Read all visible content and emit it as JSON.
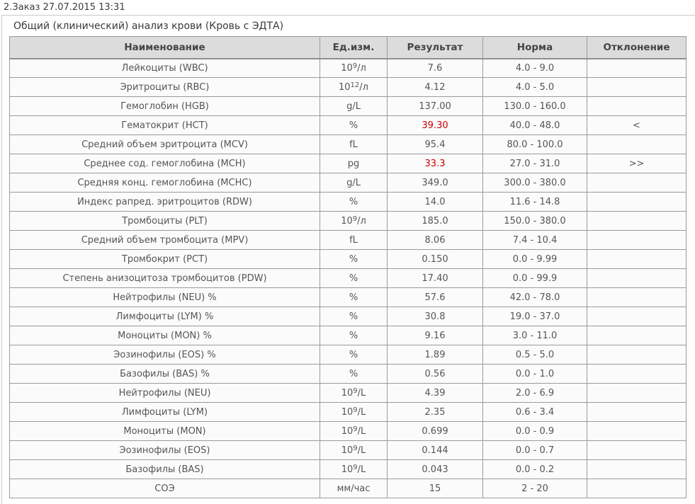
{
  "order": {
    "title": "2.Заказ 27.07.2015 13:31"
  },
  "report": {
    "caption": "Общий (клинический) анализ крови (Кровь с ЭДТА)"
  },
  "table": {
    "columns": [
      "Наименование",
      "Ед.изм.",
      "Результат",
      "Норма",
      "Отклонение"
    ],
    "colors": {
      "flagged_result": "#cc0000",
      "header_bg": "#dcdcdc",
      "row_bg": "#fbfbfb",
      "border": "#9a9a9a",
      "text": "#555555"
    },
    "rows": [
      {
        "name": "Лейкоциты (WBC)",
        "unit": "10^9/л",
        "result": "7.6",
        "norm": "4.0 - 9.0",
        "deviation": "",
        "flagged": false
      },
      {
        "name": "Эритроциты (RBC)",
        "unit": "10^12/л",
        "result": "4.12",
        "norm": "4.0 - 5.0",
        "deviation": "",
        "flagged": false
      },
      {
        "name": "Гемоглобин (HGB)",
        "unit": "g/L",
        "result": "137.00",
        "norm": "130.0 - 160.0",
        "deviation": "",
        "flagged": false
      },
      {
        "name": "Гематокрит (HCT)",
        "unit": "%",
        "result": "39.30",
        "norm": "40.0 - 48.0",
        "deviation": "<",
        "flagged": true
      },
      {
        "name": "Средний объем эритроцита (MCV)",
        "unit": "fL",
        "result": "95.4",
        "norm": "80.0 - 100.0",
        "deviation": "",
        "flagged": false
      },
      {
        "name": "Среднее сод. гемоглобина (MCH)",
        "unit": "pg",
        "result": "33.3",
        "norm": "27.0 - 31.0",
        "deviation": ">>",
        "flagged": true
      },
      {
        "name": "Средняя конц. гемоглобина (MCHC)",
        "unit": "g/L",
        "result": "349.0",
        "norm": "300.0 - 380.0",
        "deviation": "",
        "flagged": false
      },
      {
        "name": "Индекс рапред. эритроцитов (RDW)",
        "unit": "%",
        "result": "14.0",
        "norm": "11.6 - 14.8",
        "deviation": "",
        "flagged": false
      },
      {
        "name": "Тромбоциты (PLT)",
        "unit": "10^9/л",
        "result": "185.0",
        "norm": "150.0 - 380.0",
        "deviation": "",
        "flagged": false
      },
      {
        "name": "Средний объем тромбоцита (MPV)",
        "unit": "fL",
        "result": "8.06",
        "norm": "7.4 - 10.4",
        "deviation": "",
        "flagged": false
      },
      {
        "name": "Тромбокрит (PCT)",
        "unit": "%",
        "result": "0.150",
        "norm": "0.0 - 9.99",
        "deviation": "",
        "flagged": false
      },
      {
        "name": "Степень анизоцитоза тромбоцитов (PDW)",
        "unit": "%",
        "result": "17.40",
        "norm": "0.0 - 99.9",
        "deviation": "",
        "flagged": false
      },
      {
        "name": "Нейтрофилы (NEU) %",
        "unit": "%",
        "result": "57.6",
        "norm": "42.0 - 78.0",
        "deviation": "",
        "flagged": false
      },
      {
        "name": "Лимфоциты (LYM) %",
        "unit": "%",
        "result": "30.8",
        "norm": "19.0 - 37.0",
        "deviation": "",
        "flagged": false
      },
      {
        "name": "Моноциты (MON) %",
        "unit": "%",
        "result": "9.16",
        "norm": "3.0 - 11.0",
        "deviation": "",
        "flagged": false
      },
      {
        "name": "Эозинофилы (EOS) %",
        "unit": "%",
        "result": "1.89",
        "norm": "0.5 - 5.0",
        "deviation": "",
        "flagged": false
      },
      {
        "name": "Базофилы (BAS) %",
        "unit": "%",
        "result": "0.56",
        "norm": "0.0 - 1.0",
        "deviation": "",
        "flagged": false
      },
      {
        "name": "Нейтрофилы (NEU)",
        "unit": "10^9/L",
        "result": "4.39",
        "norm": "2.0 - 6.9",
        "deviation": "",
        "flagged": false
      },
      {
        "name": "Лимфоциты (LYM)",
        "unit": "10^9/L",
        "result": "2.35",
        "norm": "0.6 - 3.4",
        "deviation": "",
        "flagged": false
      },
      {
        "name": "Моноциты (MON)",
        "unit": "10^9/L",
        "result": "0.699",
        "norm": "0.0 - 0.9",
        "deviation": "",
        "flagged": false
      },
      {
        "name": "Эозинофилы (EOS)",
        "unit": "10^9/L",
        "result": "0.144",
        "norm": "0.0 - 0.7",
        "deviation": "",
        "flagged": false
      },
      {
        "name": "Базофилы (BAS)",
        "unit": "10^9/L",
        "result": "0.043",
        "norm": "0.0 - 0.2",
        "deviation": "",
        "flagged": false
      },
      {
        "name": "СОЭ",
        "unit": "мм/час",
        "result": "15",
        "norm": "2 - 20",
        "deviation": "",
        "flagged": false
      }
    ]
  }
}
